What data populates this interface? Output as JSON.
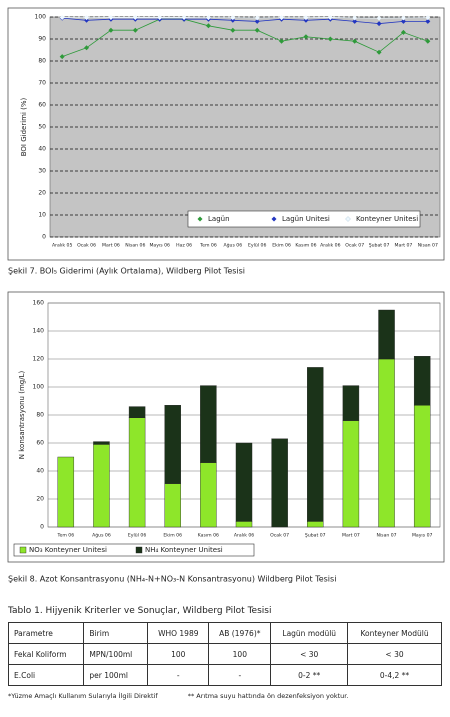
{
  "chart_data": [
    {
      "type": "line",
      "y_label": "BOI Giderimi (%)",
      "categories": [
        "Aralık 05",
        "Ocak 06",
        "Mart 06",
        "Nisan 06",
        "Mayıs 06",
        "Haz 06",
        "Tem 06",
        "Ağus 06",
        "Eylül 06",
        "Ekim 06",
        "Kasım 06",
        "Aralık 06",
        "Ocak 07",
        "Şubat 07",
        "Mart 07",
        "Nisan 07"
      ],
      "series": [
        {
          "name": "Lagün",
          "color": "#2e9a3a",
          "values": [
            82,
            86,
            94,
            94,
            99,
            99,
            96,
            94,
            94,
            89,
            91,
            90,
            89,
            84,
            93,
            89
          ]
        },
        {
          "name": "Lagün Unitesi",
          "color": "#2336c0",
          "values": [
            99.5,
            98.5,
            99,
            99,
            99,
            99,
            99,
            98.5,
            98,
            99,
            98.5,
            99,
            98,
            97,
            98,
            98
          ]
        },
        {
          "name": "Konteyner Unitesi",
          "color": "#eef8ff",
          "values": [
            99.8,
            99.7,
            99.8,
            99.8,
            99.8,
            99.8,
            99.7,
            99.7,
            99.6,
            99.7,
            99.7,
            99.8,
            99.6,
            99.5,
            99.6,
            99.7
          ]
        }
      ],
      "ylim": [
        0,
        100
      ],
      "yticks": [
        0,
        10,
        20,
        30,
        40,
        50,
        60,
        70,
        80,
        90,
        100
      ],
      "grid": true,
      "legend": "lower right",
      "caption": "Şekil 7. BOI₅ Giderimi (Aylık Ortalama), Wildberg Pilot Tesisi"
    },
    {
      "type": "bar",
      "stacked": true,
      "y_label": "N konsantrasyonu (mg/L)",
      "categories": [
        "Tem 06",
        "Ağus 06",
        "Eylül 06",
        "Ekim 06",
        "Kasım 06",
        "Aralık 06",
        "Ocak 07",
        "Şubat 07",
        "Mart 07",
        "Nisan 07",
        "Mayıs 07"
      ],
      "series": [
        {
          "name": "NO₃ Konteyner Unitesi",
          "color": "#8ee62a",
          "values": [
            50,
            59,
            78,
            31,
            46,
            4,
            0,
            4,
            76,
            120,
            87
          ]
        },
        {
          "name": "NH₄ Konteyner Unitesi",
          "color": "#1b3319",
          "values": [
            0,
            2,
            8,
            56,
            55,
            56,
            63,
            110,
            25,
            35,
            35
          ]
        }
      ],
      "ylim": [
        0,
        160
      ],
      "yticks": [
        0,
        20,
        40,
        60,
        80,
        100,
        120,
        140,
        160
      ],
      "grid": true,
      "legend": "bottom",
      "caption": "Şekil 8. Azot Konsantrasyonu (NH₄-N+NO₃-N Konsantrasyonu) Wildberg Pilot Tesisi"
    }
  ],
  "table": {
    "title": "Tablo 1. Hijyenik Kriterler ve Sonuçlar, Wildberg Pilot Tesisi",
    "header": [
      "Parametre",
      "Birim",
      "WHO 1989",
      "AB (1976)*",
      "Lagün modülü",
      "Konteyner Modülü"
    ],
    "rows": [
      [
        "Fekal Koliform",
        "MPN/100ml",
        "100",
        "100",
        "< 30",
        "< 30"
      ],
      [
        "E.Coli",
        "per 100ml",
        "-",
        "-",
        "0-2 **",
        "0-4,2 **"
      ]
    ]
  },
  "footnotes": [
    "*Yüzme Amaçlı Kullanım Sularıyla İlgili Direktif",
    "** Arıtma suyu hattında ön dezenfeksiyon yoktur."
  ]
}
